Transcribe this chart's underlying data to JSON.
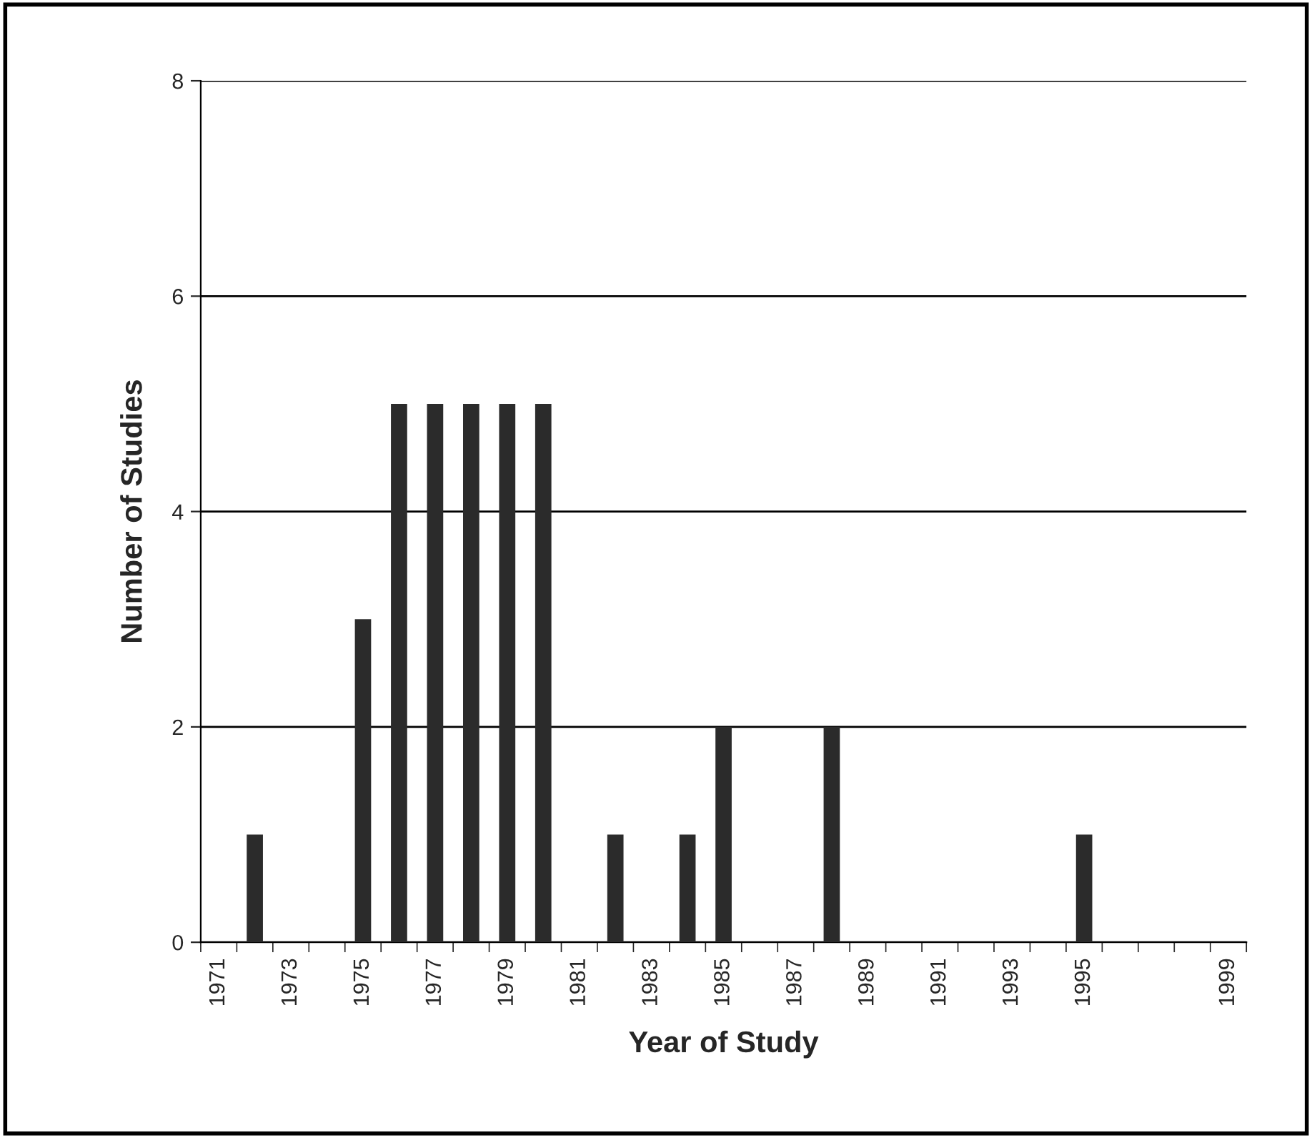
{
  "chart_data": {
    "type": "bar",
    "xlabel": "Year of Study",
    "ylabel": "Number of Studies",
    "categories": [
      "1971",
      null,
      "1973",
      null,
      "1975",
      null,
      "1977",
      null,
      "1979",
      null,
      "1981",
      null,
      "1983",
      null,
      "1985",
      null,
      "1987",
      null,
      "1989",
      null,
      "1991",
      null,
      "1993",
      null,
      "1995",
      null,
      null,
      null,
      "1999"
    ],
    "values": [
      0,
      1,
      0,
      0,
      3,
      5,
      5,
      5,
      5,
      5,
      0,
      1,
      0,
      1,
      2,
      0,
      0,
      2,
      0,
      0,
      0,
      0,
      0,
      0,
      1,
      0,
      0,
      0,
      0
    ],
    "color": "#2b2b2b",
    "ylim": [
      0,
      8
    ],
    "yticks": [
      0,
      2,
      4,
      6,
      8
    ],
    "grid": "y",
    "legend": false
  }
}
